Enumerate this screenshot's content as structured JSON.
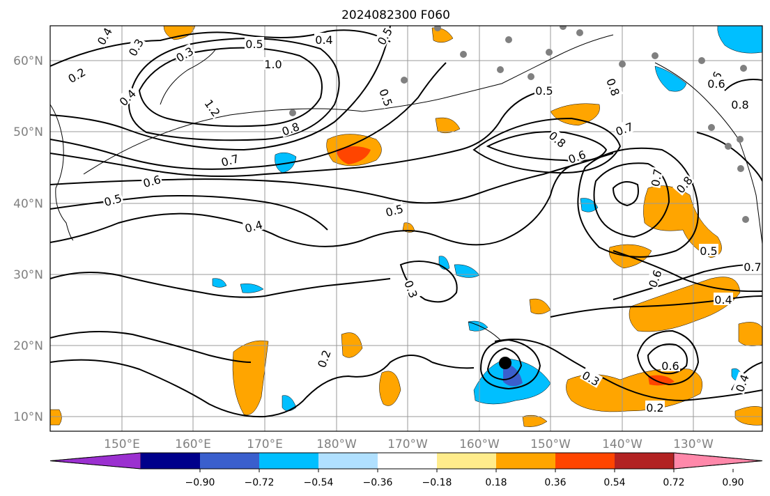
{
  "title": "2024082300 F060",
  "lat_labels": [
    "60°N",
    "50°N",
    "40°N",
    "30°N",
    "20°N",
    "10°N"
  ],
  "lon_labels": [
    "150°E",
    "160°E",
    "170°E",
    "180°W",
    "170°W",
    "160°W",
    "150°W",
    "140°W",
    "130°W"
  ],
  "colorbar": {
    "ticks": [
      "−0.90",
      "−0.72",
      "−0.54",
      "−0.36",
      "−0.18",
      "0.18",
      "0.36",
      "0.54",
      "0.72",
      "0.90"
    ],
    "colors": [
      "#9b30d0",
      "#00008b",
      "#3a5fcd",
      "#00bfff",
      "#b0e0ff",
      "#ffffff",
      "#ffec8b",
      "#ffa500",
      "#ff4500",
      "#b22222",
      "#ff88aa"
    ]
  },
  "contour_labels": [
    "0.4",
    "0.3",
    "0.2",
    "0.3",
    "0.5",
    "1.0",
    "0.4",
    "0.4",
    "1.2",
    "0.5",
    "0.8",
    "0.7",
    "0.6",
    "0.5",
    "0.4",
    "0.5",
    "0.5",
    "0.8",
    "0.7",
    "0.6",
    "0.7",
    "0.8",
    "0.8",
    "0.6",
    "0.3",
    "0.2",
    "0.5",
    "0.6",
    "0.4",
    "0.7",
    "0.3",
    "0.2",
    "0.6",
    "0.4",
    "0.8",
    "0.6",
    "0.5"
  ]
}
